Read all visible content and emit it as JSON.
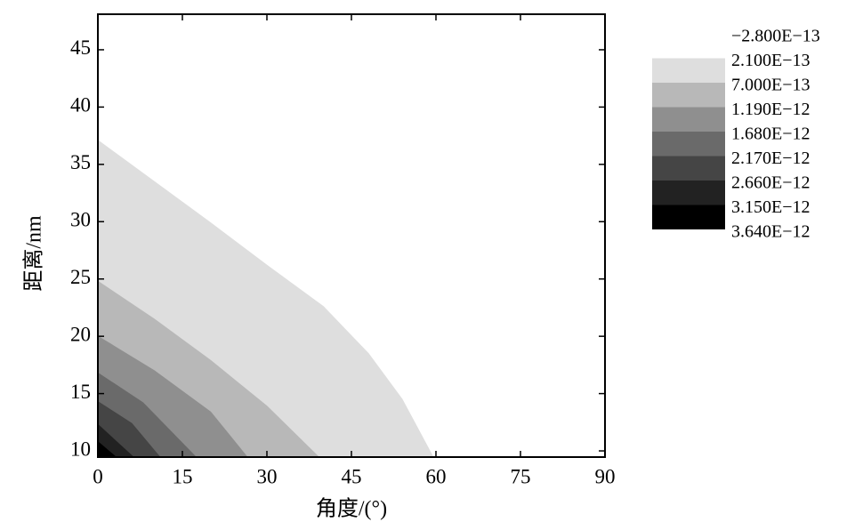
{
  "chart_data": {
    "type": "contour",
    "x_label": "角度/(°)",
    "y_label": "距离/nm",
    "xlim": [
      0,
      90
    ],
    "ylim": [
      9.46,
      48.1
    ],
    "xticks": [
      0,
      15,
      30,
      45,
      60,
      75,
      90
    ],
    "yticks": [
      10,
      15,
      20,
      25,
      30,
      35,
      40,
      45
    ],
    "levels": [
      {
        "value": -2.8e-13,
        "label": "−2.800E−13"
      },
      {
        "value": 2.1e-13,
        "label": "2.100E−13"
      },
      {
        "value": 7e-13,
        "label": "7.000E−13"
      },
      {
        "value": 1.19e-12,
        "label": "1.190E−12"
      },
      {
        "value": 1.68e-12,
        "label": "1.680E−12"
      },
      {
        "value": 2.17e-12,
        "label": "2.170E−12"
      },
      {
        "value": 2.66e-12,
        "label": "2.660E−12"
      },
      {
        "value": 3.15e-12,
        "label": "3.150E−12"
      },
      {
        "value": 3.64e-12,
        "label": "3.640E−12"
      }
    ],
    "colors": [
      "#ffffff",
      "#dedede",
      "#b8b8b8",
      "#8f8f8f",
      "#6a6a6a",
      "#454545",
      "#222222",
      "#000000"
    ],
    "contours": [
      {
        "x": [
          0,
          10,
          20,
          30,
          40,
          48,
          54,
          59.5
        ],
        "y": [
          37.1,
          33.5,
          29.9,
          26.2,
          22.6,
          18.5,
          14.5,
          9.46
        ]
      },
      {
        "x": [
          0,
          10,
          20,
          30,
          39.2
        ],
        "y": [
          24.8,
          21.5,
          17.9,
          13.9,
          9.46
        ]
      },
      {
        "x": [
          0,
          10,
          20,
          26.5
        ],
        "y": [
          20.0,
          17.0,
          13.4,
          9.46
        ]
      },
      {
        "x": [
          0,
          8,
          17.4
        ],
        "y": [
          16.8,
          14.2,
          9.46
        ]
      },
      {
        "x": [
          0,
          6,
          11
        ],
        "y": [
          14.3,
          12.4,
          9.46
        ]
      },
      {
        "x": [
          0,
          6.3
        ],
        "y": [
          12.3,
          9.46
        ]
      },
      {
        "x": [
          0,
          3.2
        ],
        "y": [
          10.8,
          9.46
        ]
      }
    ]
  }
}
